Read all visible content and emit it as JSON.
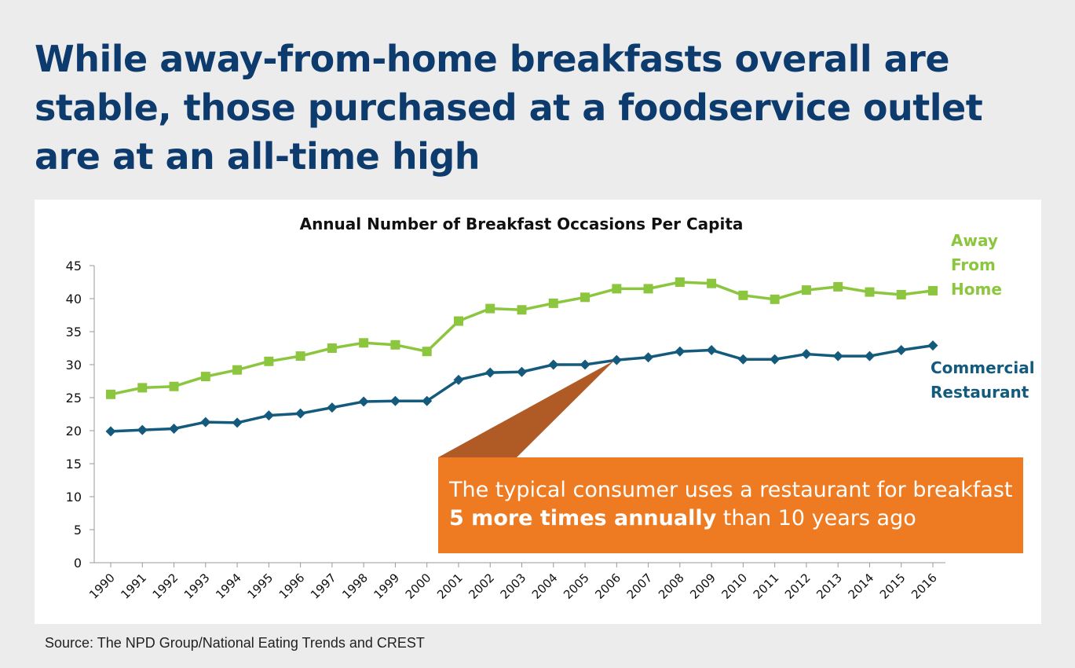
{
  "headline": "While away-from-home breakfasts overall are stable, those purchased at a foodservice outlet are at an all-time high",
  "source": "Source: The NPD Group/National Eating Trends and CREST",
  "callout": {
    "line1": "The typical consumer uses a restaurant for breakfast",
    "bold": "5 more times annually",
    "rest": " than 10 years ago"
  },
  "colors": {
    "away": "#8cc63f",
    "commercial": "#145a7c",
    "callout": "#ee7b22",
    "callout_pointer": "#b05a26",
    "headline": "#0d3b6e"
  },
  "chart_data": {
    "type": "line",
    "title": "Annual Number of Breakfast Occasions Per Capita",
    "xlabel": "",
    "ylabel": "",
    "ylim": [
      0,
      45
    ],
    "yticks": [
      0,
      5,
      10,
      15,
      20,
      25,
      30,
      35,
      40,
      45
    ],
    "categories": [
      "1990",
      "1991",
      "1992",
      "1993",
      "1994",
      "1995",
      "1996",
      "1997",
      "1998",
      "1999",
      "2000",
      "2001",
      "2002",
      "2003",
      "2004",
      "2005",
      "2006",
      "2007",
      "2008",
      "2009",
      "2010",
      "2011",
      "2012",
      "2013",
      "2014",
      "2015",
      "2016"
    ],
    "grid": false,
    "legend": "inline labels at right end of lines",
    "series": [
      {
        "name_lines": [
          "Away",
          "From",
          "Home"
        ],
        "marker": "square",
        "values": [
          25.5,
          26.5,
          26.7,
          28.2,
          29.2,
          30.5,
          31.3,
          32.5,
          33.3,
          33.0,
          32.0,
          36.6,
          38.5,
          38.3,
          39.3,
          40.2,
          41.5,
          41.5,
          42.5,
          42.3,
          40.5,
          39.9,
          41.3,
          41.8,
          41.0,
          40.6,
          41.2
        ]
      },
      {
        "name_lines": [
          "Commercial",
          "Restaurant"
        ],
        "marker": "diamond",
        "values": [
          19.9,
          20.1,
          20.3,
          21.3,
          21.2,
          22.3,
          22.6,
          23.5,
          24.4,
          24.5,
          24.5,
          27.7,
          28.8,
          28.9,
          30.0,
          30.0,
          30.7,
          31.1,
          32.0,
          32.2,
          30.8,
          30.8,
          31.6,
          31.3,
          31.3,
          32.2,
          32.9
        ]
      }
    ]
  }
}
